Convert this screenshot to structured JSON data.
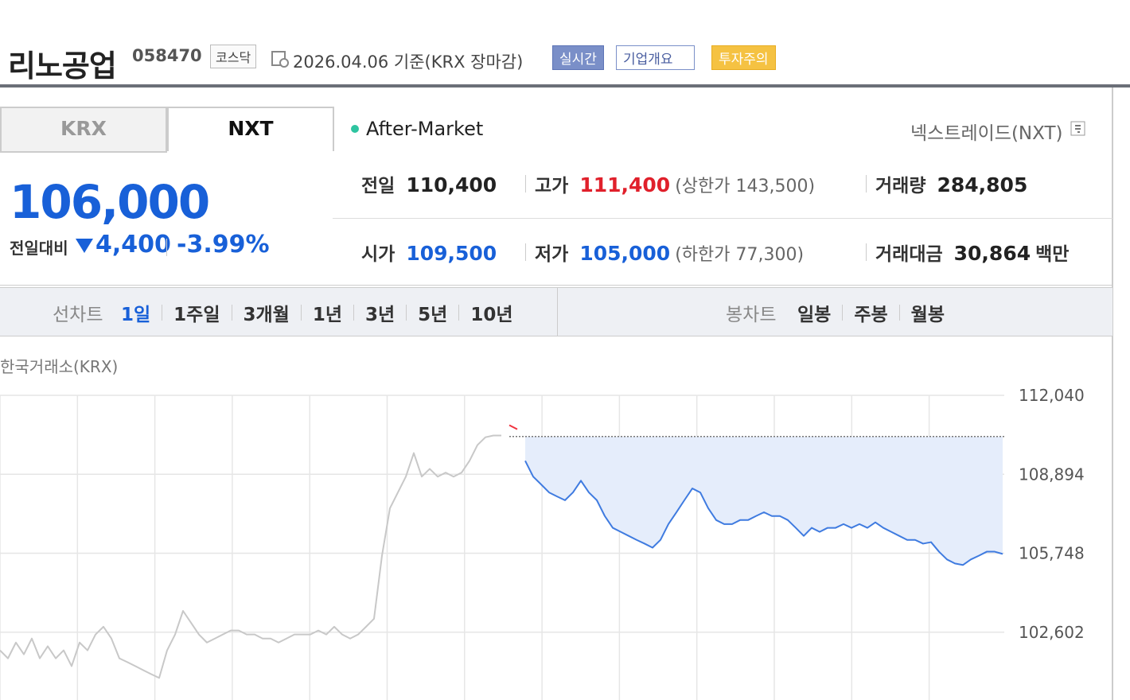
{
  "header": {
    "title": "리노공업",
    "code": "058470",
    "market": "코스닥",
    "date": "2026.04.06 기준(KRX 장마감)",
    "buttons": [
      "실시간",
      "기업개요",
      "투자주의"
    ]
  },
  "tabs": [
    "KRX",
    "NXT"
  ],
  "session": "After-Market",
  "venue": "넥스트레이드(NXT)",
  "quote": {
    "price": "106,000",
    "change_label": "전일대비",
    "change": "4,400",
    "change_pct": "-3.99%"
  },
  "stats": [
    {
      "label": "전일",
      "value": "110,400"
    },
    {
      "label": "고가",
      "value": "111,400",
      "limit": "(상한가 143,500)"
    },
    {
      "label": "거래량",
      "value": "284,805"
    },
    {
      "label": "시가",
      "value": "109,500"
    },
    {
      "label": "저가",
      "value": "105,000",
      "limit": "(하한가 77,300)"
    },
    {
      "label": "거래대금",
      "value": "30,864",
      "unit": "백만"
    }
  ],
  "periods": {
    "line_label": "선차트",
    "line": [
      "1일",
      "1주일",
      "3개월",
      "1년",
      "3년",
      "5년",
      "10년"
    ],
    "candle_label": "봉차트",
    "candle": [
      "일봉",
      "주봉",
      "월봉"
    ]
  },
  "chart_source": "한국거래소(KRX)",
  "chart_data": {
    "type": "line",
    "ylim": [
      99900,
      112040
    ],
    "yticks": [
      {
        "value": 112040,
        "label": "112,040"
      },
      {
        "value": 108894,
        "label": "108,894"
      },
      {
        "value": 105748,
        "label": "105,748"
      },
      {
        "value": 102602,
        "label": "102,602"
      }
    ],
    "baseline": 110400,
    "grid": true,
    "series": [
      {
        "color": "#c8c8c8",
        "values": [
          101880,
          101560,
          102190,
          101720,
          102350,
          101560,
          102040,
          101560,
          101880,
          101250,
          102190,
          101880,
          102510,
          102820,
          102350,
          101560,
          101410,
          101250,
          101090,
          100930,
          100780,
          101880,
          102510,
          103450,
          102980,
          102510,
          102190,
          102350,
          102510,
          102670,
          102670,
          102510,
          102510,
          102350,
          102350,
          102190,
          102350,
          102510,
          102510,
          102510,
          102670,
          102510,
          102820,
          102510,
          102350,
          102510,
          102820,
          103140,
          105650,
          107540,
          108170,
          108800,
          109740,
          108800,
          109110,
          108800,
          108960,
          108800,
          108960,
          109430,
          110060,
          110370,
          110440,
          110440,
          null,
          null,
          null,
          null,
          null,
          null,
          null,
          null,
          null,
          null,
          null,
          null,
          null,
          null,
          null,
          null,
          null,
          null,
          null,
          null,
          null,
          null,
          null,
          null,
          null,
          null,
          null,
          null,
          null,
          null,
          null,
          null,
          null,
          null,
          null,
          null,
          null,
          null,
          null,
          null,
          null,
          null,
          null,
          null,
          null,
          null,
          null,
          null,
          null,
          null,
          null,
          null,
          null,
          null,
          null,
          null,
          null,
          null,
          null,
          null,
          null,
          null,
          null
        ]
      },
      {
        "color": "#f0333f",
        "values": [
          null,
          null,
          null,
          null,
          null,
          null,
          null,
          null,
          null,
          null,
          null,
          null,
          null,
          null,
          null,
          null,
          null,
          null,
          null,
          null,
          null,
          null,
          null,
          null,
          null,
          null,
          null,
          null,
          null,
          null,
          null,
          null,
          null,
          null,
          null,
          null,
          null,
          null,
          null,
          null,
          null,
          null,
          null,
          null,
          null,
          null,
          null,
          null,
          null,
          null,
          null,
          null,
          null,
          null,
          null,
          null,
          null,
          null,
          null,
          null,
          null,
          null,
          null,
          null,
          110850,
          110690,
          null,
          null,
          null,
          null,
          null,
          null,
          null,
          null,
          null,
          null,
          null,
          null,
          null,
          null,
          null,
          null,
          null,
          null,
          null,
          null,
          null,
          null,
          null,
          null,
          null,
          null,
          null,
          null,
          null,
          null,
          null,
          null,
          null,
          null,
          null,
          null,
          null,
          null,
          null,
          null,
          null,
          null,
          null,
          null,
          null,
          null,
          null,
          null,
          null,
          null,
          null,
          null,
          null,
          null,
          null,
          null,
          null,
          null,
          null,
          null,
          null
        ]
      },
      {
        "color": "#3f7be0",
        "values": [
          null,
          null,
          null,
          null,
          null,
          null,
          null,
          null,
          null,
          null,
          null,
          null,
          null,
          null,
          null,
          null,
          null,
          null,
          null,
          null,
          null,
          null,
          null,
          null,
          null,
          null,
          null,
          null,
          null,
          null,
          null,
          null,
          null,
          null,
          null,
          null,
          null,
          null,
          null,
          null,
          null,
          null,
          null,
          null,
          null,
          null,
          null,
          null,
          null,
          null,
          null,
          null,
          null,
          null,
          null,
          null,
          null,
          null,
          null,
          null,
          null,
          null,
          null,
          null,
          null,
          null,
          109430,
          108800,
          108490,
          108170,
          108010,
          107860,
          108170,
          108640,
          108170,
          107860,
          107230,
          106760,
          106600,
          106440,
          106280,
          106130,
          105970,
          106280,
          106910,
          107380,
          107860,
          108330,
          108170,
          107540,
          107070,
          106910,
          106910,
          107070,
          107070,
          107230,
          107380,
          107230,
          107230,
          107070,
          106760,
          106440,
          106760,
          106600,
          106760,
          106760,
          106910,
          106760,
          106910,
          106760,
          106980,
          106760,
          106600,
          106440,
          106280,
          106280,
          106130,
          106190,
          105810,
          105500,
          105340,
          105280,
          105500,
          105650,
          105810,
          105810,
          105720
        ]
      }
    ]
  }
}
